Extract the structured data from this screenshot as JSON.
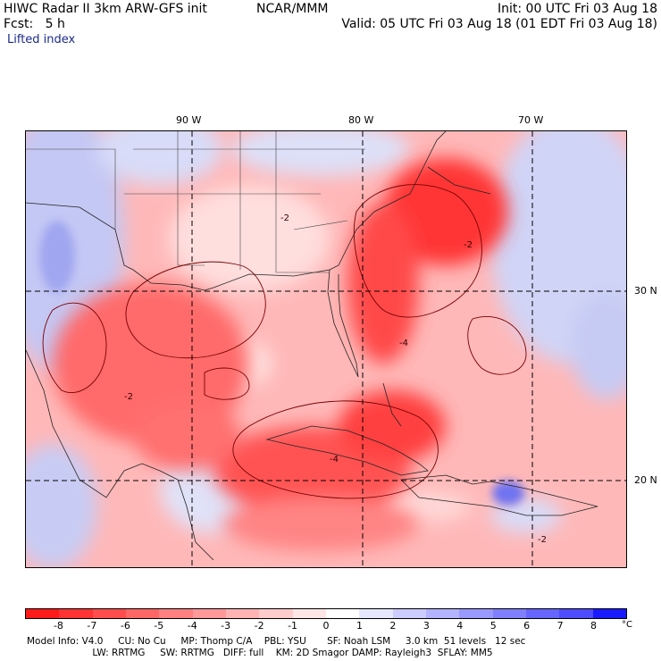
{
  "header": {
    "title": "HIWC Radar II 3km ARW-GFS init",
    "org": "NCAR/MMM",
    "init": "Init: 00 UTC Fri 03 Aug 18",
    "fcst": "Fcst:   5 h",
    "valid": "Valid: 05 UTC Fri 03 Aug 18 (01 EDT Fri 03 Aug 18)",
    "field": "Lifted index"
  },
  "map": {
    "lon_labels": [
      "90 W",
      "80 W",
      "70 W"
    ],
    "lat_labels": [
      "30 N",
      "20 N"
    ],
    "contour_labels": [
      "-2",
      "-4",
      "-2",
      "-2",
      "-4",
      "-2"
    ]
  },
  "colorbar": {
    "labels": [
      "-8",
      "-7",
      "-6",
      "-5",
      "-4",
      "-3",
      "-2",
      "-1",
      "0",
      "1",
      "2",
      "3",
      "4",
      "5",
      "6",
      "7",
      "8"
    ],
    "unit": "°C",
    "colors": [
      "#ff1a1a",
      "#ff3333",
      "#ff4d4d",
      "#ff6666",
      "#ff8080",
      "#ff9999",
      "#ffb3b3",
      "#ffcccc",
      "#ffe6e6",
      "#ffffff",
      "#e6e6ff",
      "#ccccff",
      "#b3b3ff",
      "#9999ff",
      "#8080ff",
      "#6666ff",
      "#4d4dff",
      "#1a1aff"
    ]
  },
  "footer": {
    "line1": "Model Info: V4.0     CU: No Cu     MP: Thomp C/A    PBL: YSU       SF: Noah LSM     3.0 km  51 levels   12 sec",
    "line2": "                      LW: RRTMG     SW: RRTMG   DIFF: full    KM: 2D Smagor DAMP: Rayleigh3  SFLAY: MM5"
  }
}
